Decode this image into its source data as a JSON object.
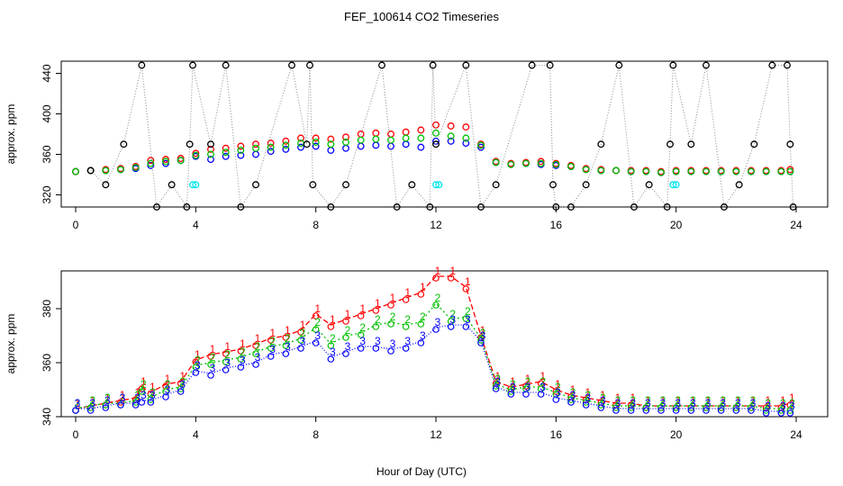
{
  "chart_data": [
    {
      "type": "scatter",
      "title": "FEF_100614  CO2 Timeseries",
      "xlabel": "",
      "ylabel": "approx. ppm",
      "xlim": [
        0,
        24
      ],
      "ylim": [
        308,
        452
      ],
      "xticks": [
        "0",
        "4",
        "8",
        "12",
        "16",
        "20",
        "24"
      ],
      "yticks": [
        "320",
        "360",
        "400",
        "440"
      ],
      "series": [
        {
          "color": "#0000ff",
          "marker": "circle",
          "x": [
            0.0,
            0.5,
            1.0,
            1.5,
            2.0,
            2.5,
            3.0,
            3.5,
            4.0,
            4.5,
            5.0,
            5.5,
            6.0,
            6.5,
            7.0,
            7.5,
            8.0,
            8.5,
            9.0,
            9.5,
            10.0,
            10.5,
            11.0,
            11.5,
            12.0,
            12.5,
            13.0,
            13.5,
            14.0,
            14.5,
            15.0,
            15.5,
            16.0,
            16.5,
            17.0,
            17.5,
            18.0,
            18.5,
            19.0,
            19.5,
            20.0,
            20.5,
            21.0,
            21.5,
            22.0,
            22.5,
            23.0,
            23.5,
            23.8
          ],
          "y": [
            343,
            344,
            344,
            345,
            346,
            349,
            351,
            354,
            358,
            355,
            358,
            359,
            360,
            363,
            365,
            367,
            368,
            364,
            366,
            368,
            369,
            368,
            370,
            367,
            373,
            373,
            371,
            367,
            352,
            350,
            351,
            350,
            349,
            348,
            345,
            344,
            344,
            343,
            343,
            342,
            343,
            343,
            343,
            343,
            343,
            343,
            343,
            343,
            343
          ]
        },
        {
          "color": "#ff0000",
          "marker": "circle",
          "x": [
            0.0,
            0.5,
            1.0,
            1.5,
            2.0,
            2.5,
            3.0,
            3.5,
            4.0,
            4.5,
            5.0,
            5.5,
            6.0,
            6.5,
            7.0,
            7.5,
            8.0,
            8.5,
            9.0,
            9.5,
            10.0,
            10.5,
            11.0,
            11.5,
            12.0,
            12.5,
            13.0,
            13.5,
            14.0,
            14.5,
            15.0,
            15.5,
            16.0,
            16.5,
            17.0,
            17.5,
            18.0,
            18.5,
            19.0,
            19.5,
            20.0,
            20.5,
            21.0,
            21.5,
            22.0,
            22.5,
            23.0,
            23.5,
            23.8
          ],
          "y": [
            343,
            344,
            345,
            346,
            348,
            354,
            355,
            356,
            361,
            365,
            366,
            368,
            370,
            371,
            373,
            376,
            376,
            375,
            377,
            380,
            381,
            380,
            382,
            384,
            389,
            388,
            387,
            370,
            353,
            351,
            352,
            353,
            351,
            349,
            346,
            345,
            344,
            344,
            344,
            343,
            344,
            344,
            344,
            344,
            344,
            344,
            344,
            344,
            345
          ]
        },
        {
          "color": "#00c000",
          "marker": "circle",
          "x": [
            0.0,
            0.5,
            1.0,
            1.5,
            2.0,
            2.5,
            3.0,
            3.5,
            4.0,
            4.5,
            5.0,
            5.5,
            6.0,
            6.5,
            7.0,
            7.5,
            8.0,
            8.5,
            9.0,
            9.5,
            10.0,
            10.5,
            11.0,
            11.5,
            12.0,
            12.5,
            13.0,
            13.5,
            14.0,
            14.5,
            15.0,
            15.5,
            16.0,
            16.5,
            17.0,
            17.5,
            18.0,
            18.5,
            19.0,
            19.5,
            20.0,
            20.5,
            21.0,
            21.5,
            22.0,
            22.5,
            23.0,
            23.5,
            23.8
          ],
          "y": [
            343,
            344,
            344,
            345,
            347,
            351,
            353,
            354,
            359,
            360,
            362,
            364,
            366,
            367,
            369,
            371,
            372,
            370,
            372,
            374,
            375,
            374,
            376,
            376,
            381,
            378,
            376,
            369,
            352,
            350,
            351,
            351,
            350,
            348,
            345,
            344,
            344,
            343,
            343,
            342,
            343,
            343,
            343,
            343,
            343,
            343,
            343,
            343,
            343
          ]
        },
        {
          "color": "#000000",
          "marker": "circle",
          "x": [
            0.5,
            1.0,
            1.6,
            2.2,
            2.7,
            3.2,
            3.7,
            3.8,
            3.9,
            4.5,
            5.0,
            5.5,
            6.0,
            7.2,
            7.7,
            7.8,
            7.9,
            8.5,
            9.0,
            10.2,
            10.7,
            11.2,
            11.8,
            11.9,
            12.0,
            13.0,
            13.5,
            14.0,
            15.2,
            15.8,
            15.9,
            16.0,
            16.5,
            17.0,
            17.5,
            18.1,
            18.6,
            19.1,
            19.7,
            19.8,
            19.9,
            20.5,
            21.0,
            21.6,
            22.1,
            22.6,
            23.2,
            23.7,
            23.8,
            23.9
          ],
          "y": [
            344,
            330,
            370,
            448,
            308,
            330,
            308,
            370,
            448,
            370,
            448,
            308,
            330,
            448,
            370,
            448,
            330,
            308,
            330,
            448,
            308,
            330,
            308,
            448,
            370,
            448,
            308,
            330,
            448,
            448,
            330,
            308,
            308,
            330,
            370,
            448,
            308,
            330,
            308,
            370,
            448,
            370,
            448,
            308,
            330,
            370,
            448,
            448,
            370,
            308
          ]
        },
        {
          "color": "#00e5ee",
          "marker": "circle",
          "x": [
            3.9,
            4.0,
            12.0,
            12.1,
            19.9,
            20.0
          ],
          "y": [
            330,
            330,
            330,
            330,
            330,
            330
          ]
        }
      ]
    },
    {
      "type": "line",
      "title": "",
      "xlabel": "Hour of Day (UTC)",
      "ylabel": "approx. ppm",
      "xlim": [
        0,
        24
      ],
      "ylim": [
        340,
        394
      ],
      "xticks": [
        "0",
        "4",
        "8",
        "12",
        "16",
        "20",
        "24"
      ],
      "yticks": [
        "340",
        "360",
        "380"
      ],
      "series": [
        {
          "name": "1",
          "color": "#ff0000",
          "marker": "1",
          "x": [
            0.0,
            0.5,
            1.0,
            1.5,
            2.0,
            2.2,
            2.5,
            3.0,
            3.5,
            4.0,
            4.5,
            5.0,
            5.5,
            6.0,
            6.5,
            7.0,
            7.5,
            8.0,
            8.5,
            9.0,
            9.5,
            10.0,
            10.5,
            11.0,
            11.5,
            12.0,
            12.5,
            13.0,
            13.5,
            14.0,
            14.5,
            15.0,
            15.5,
            16.0,
            16.5,
            17.0,
            17.5,
            18.0,
            18.5,
            19.0,
            19.5,
            20.0,
            20.5,
            21.0,
            21.5,
            22.0,
            22.5,
            23.0,
            23.5,
            23.8
          ],
          "y": [
            343,
            344,
            345,
            346,
            347,
            351,
            349,
            352,
            353,
            361,
            363,
            364,
            365,
            367,
            369,
            370,
            372,
            378,
            374,
            376,
            378,
            380,
            382,
            384,
            386,
            392,
            392,
            388,
            370,
            353,
            351,
            352,
            353,
            350,
            348,
            347,
            346,
            345,
            345,
            344,
            344,
            344,
            344,
            344,
            344,
            344,
            344,
            344,
            344,
            345
          ]
        },
        {
          "name": "2",
          "color": "#00c000",
          "marker": "2",
          "x": [
            0.0,
            0.5,
            1.0,
            1.5,
            2.0,
            2.2,
            2.5,
            3.0,
            3.5,
            4.0,
            4.5,
            5.0,
            5.5,
            6.0,
            6.5,
            7.0,
            7.5,
            8.0,
            8.5,
            9.0,
            9.5,
            10.0,
            10.5,
            11.0,
            11.5,
            12.0,
            12.5,
            13.0,
            13.5,
            14.0,
            14.5,
            15.0,
            15.5,
            16.0,
            16.5,
            17.0,
            17.5,
            18.0,
            18.5,
            19.0,
            19.5,
            20.0,
            20.5,
            21.0,
            21.5,
            22.0,
            22.5,
            23.0,
            23.5,
            23.8
          ],
          "y": [
            343,
            344,
            345,
            345,
            346,
            350,
            347,
            350,
            351,
            359,
            360,
            361,
            362,
            364,
            366,
            367,
            369,
            373,
            367,
            370,
            371,
            374,
            375,
            374,
            375,
            382,
            376,
            377,
            369,
            352,
            350,
            351,
            351,
            349,
            347,
            346,
            345,
            344,
            344,
            344,
            344,
            344,
            344,
            344,
            344,
            344,
            344,
            343,
            343,
            343
          ]
        },
        {
          "name": "3",
          "color": "#0000ff",
          "marker": "3",
          "x": [
            0.0,
            0.5,
            1.0,
            1.5,
            2.0,
            2.2,
            2.5,
            3.0,
            3.5,
            4.0,
            4.5,
            5.0,
            5.5,
            6.0,
            6.5,
            7.0,
            7.5,
            8.0,
            8.5,
            9.0,
            9.5,
            10.0,
            10.5,
            11.0,
            11.5,
            12.0,
            12.5,
            13.0,
            13.5,
            14.0,
            14.5,
            15.0,
            15.5,
            16.0,
            16.5,
            17.0,
            17.5,
            18.0,
            18.5,
            19.0,
            19.5,
            20.0,
            20.5,
            21.0,
            21.5,
            22.0,
            22.5,
            23.0,
            23.5,
            23.8
          ],
          "y": [
            343,
            343,
            344,
            345,
            345,
            346,
            346,
            348,
            350,
            357,
            356,
            358,
            359,
            360,
            363,
            364,
            366,
            368,
            362,
            364,
            366,
            366,
            365,
            366,
            368,
            373,
            374,
            374,
            368,
            351,
            349,
            349,
            349,
            347,
            346,
            345,
            344,
            343,
            343,
            343,
            343,
            343,
            343,
            343,
            343,
            343,
            343,
            342,
            342,
            342
          ]
        }
      ]
    }
  ]
}
